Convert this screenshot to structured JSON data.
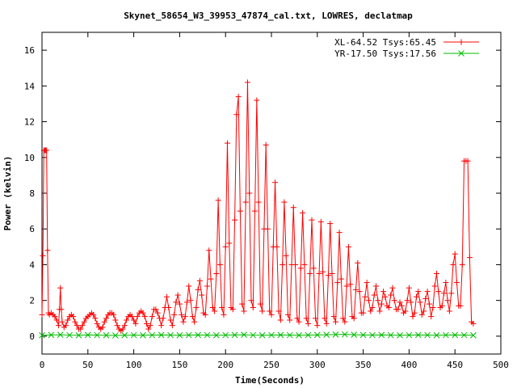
{
  "chart_data": {
    "type": "line",
    "title": "Skynet_58654_W3_39953_47874_cal.txt, LOWRES, declatmap",
    "xlabel": "Time(Seconds)",
    "ylabel": "Power (kelvin)",
    "xlim": [
      0,
      500
    ],
    "ylim": [
      -1,
      17
    ],
    "x_ticks": [
      0,
      50,
      100,
      150,
      200,
      250,
      300,
      350,
      400,
      450,
      500
    ],
    "y_ticks": [
      0,
      2,
      4,
      6,
      8,
      10,
      12,
      14,
      16
    ],
    "grid": false,
    "legend_position": "top-right",
    "series": [
      {
        "name": "XL-64.52 Tsys:65.45",
        "color": "#ff0000",
        "marker": "plus",
        "points": [
          [
            0,
            1.2
          ],
          [
            1,
            4.5
          ],
          [
            2,
            10.4
          ],
          [
            3,
            10.4
          ],
          [
            4,
            10.4
          ],
          [
            5,
            10.4
          ],
          [
            6,
            4.8
          ],
          [
            7,
            1.3
          ],
          [
            8,
            1.2
          ],
          [
            10,
            1.3
          ],
          [
            12,
            1.2
          ],
          [
            14,
            1.1
          ],
          [
            16,
            0.9
          ],
          [
            18,
            0.6
          ],
          [
            19,
            1.5
          ],
          [
            20,
            2.7
          ],
          [
            21,
            1.5
          ],
          [
            22,
            0.8
          ],
          [
            24,
            0.5
          ],
          [
            26,
            0.6
          ],
          [
            28,
            0.9
          ],
          [
            30,
            1.1
          ],
          [
            32,
            1.2
          ],
          [
            34,
            1.1
          ],
          [
            36,
            0.8
          ],
          [
            38,
            0.6
          ],
          [
            40,
            0.4
          ],
          [
            42,
            0.4
          ],
          [
            44,
            0.6
          ],
          [
            46,
            0.8
          ],
          [
            48,
            1.0
          ],
          [
            50,
            1.1
          ],
          [
            52,
            1.2
          ],
          [
            54,
            1.3
          ],
          [
            56,
            1.2
          ],
          [
            58,
            1.0
          ],
          [
            60,
            0.7
          ],
          [
            62,
            0.5
          ],
          [
            64,
            0.4
          ],
          [
            66,
            0.5
          ],
          [
            68,
            0.8
          ],
          [
            70,
            1.0
          ],
          [
            72,
            1.2
          ],
          [
            74,
            1.3
          ],
          [
            76,
            1.3
          ],
          [
            78,
            1.2
          ],
          [
            80,
            0.9
          ],
          [
            82,
            0.6
          ],
          [
            84,
            0.4
          ],
          [
            86,
            0.3
          ],
          [
            88,
            0.4
          ],
          [
            90,
            0.6
          ],
          [
            92,
            0.9
          ],
          [
            94,
            1.1
          ],
          [
            96,
            1.2
          ],
          [
            98,
            1.1
          ],
          [
            100,
            0.9
          ],
          [
            102,
            0.7
          ],
          [
            104,
            1.1
          ],
          [
            106,
            1.3
          ],
          [
            108,
            1.4
          ],
          [
            110,
            1.3
          ],
          [
            112,
            1.1
          ],
          [
            114,
            0.7
          ],
          [
            116,
            0.4
          ],
          [
            118,
            0.6
          ],
          [
            120,
            1.1
          ],
          [
            122,
            1.5
          ],
          [
            124,
            1.5
          ],
          [
            126,
            1.3
          ],
          [
            128,
            1.0
          ],
          [
            130,
            0.6
          ],
          [
            132,
            1.0
          ],
          [
            134,
            1.6
          ],
          [
            136,
            2.2
          ],
          [
            138,
            1.6
          ],
          [
            140,
            0.9
          ],
          [
            142,
            0.6
          ],
          [
            144,
            1.2
          ],
          [
            146,
            1.9
          ],
          [
            148,
            2.3
          ],
          [
            150,
            1.8
          ],
          [
            152,
            1.2
          ],
          [
            154,
            0.8
          ],
          [
            156,
            1.1
          ],
          [
            158,
            1.9
          ],
          [
            160,
            2.8
          ],
          [
            162,
            2.0
          ],
          [
            164,
            1.1
          ],
          [
            166,
            0.8
          ],
          [
            168,
            1.6
          ],
          [
            170,
            2.6
          ],
          [
            172,
            3.1
          ],
          [
            174,
            2.3
          ],
          [
            176,
            1.3
          ],
          [
            178,
            1.2
          ],
          [
            180,
            2.8
          ],
          [
            182,
            4.8
          ],
          [
            184,
            3.2
          ],
          [
            186,
            1.6
          ],
          [
            188,
            1.4
          ],
          [
            190,
            3.5
          ],
          [
            192,
            7.6
          ],
          [
            194,
            4.0
          ],
          [
            196,
            1.6
          ],
          [
            198,
            1.2
          ],
          [
            200,
            5.0
          ],
          [
            202,
            10.8
          ],
          [
            204,
            5.2
          ],
          [
            206,
            1.6
          ],
          [
            208,
            1.5
          ],
          [
            210,
            6.5
          ],
          [
            212,
            12.4
          ],
          [
            214,
            13.4
          ],
          [
            216,
            7.0
          ],
          [
            218,
            1.8
          ],
          [
            220,
            1.4
          ],
          [
            222,
            7.5
          ],
          [
            224,
            14.2
          ],
          [
            226,
            8.0
          ],
          [
            228,
            2.0
          ],
          [
            230,
            1.6
          ],
          [
            232,
            7.0
          ],
          [
            234,
            13.2
          ],
          [
            236,
            7.5
          ],
          [
            238,
            1.8
          ],
          [
            240,
            1.4
          ],
          [
            242,
            6.0
          ],
          [
            244,
            10.7
          ],
          [
            246,
            6.0
          ],
          [
            248,
            1.4
          ],
          [
            250,
            1.2
          ],
          [
            252,
            5.0
          ],
          [
            254,
            8.6
          ],
          [
            256,
            5.0
          ],
          [
            258,
            1.4
          ],
          [
            260,
            0.9
          ],
          [
            262,
            4.0
          ],
          [
            264,
            7.5
          ],
          [
            266,
            4.5
          ],
          [
            268,
            1.2
          ],
          [
            270,
            0.9
          ],
          [
            272,
            4.0
          ],
          [
            274,
            7.2
          ],
          [
            276,
            4.0
          ],
          [
            278,
            1.0
          ],
          [
            280,
            0.8
          ],
          [
            282,
            3.8
          ],
          [
            284,
            6.9
          ],
          [
            286,
            4.0
          ],
          [
            288,
            1.0
          ],
          [
            290,
            0.7
          ],
          [
            292,
            3.5
          ],
          [
            294,
            6.5
          ],
          [
            296,
            3.8
          ],
          [
            298,
            1.0
          ],
          [
            300,
            0.6
          ],
          [
            302,
            3.5
          ],
          [
            304,
            6.4
          ],
          [
            306,
            3.6
          ],
          [
            308,
            1.0
          ],
          [
            310,
            0.7
          ],
          [
            312,
            3.4
          ],
          [
            314,
            6.3
          ],
          [
            316,
            3.5
          ],
          [
            318,
            1.1
          ],
          [
            320,
            0.8
          ],
          [
            322,
            3.0
          ],
          [
            324,
            5.8
          ],
          [
            326,
            3.2
          ],
          [
            328,
            1.0
          ],
          [
            330,
            0.8
          ],
          [
            332,
            2.8
          ],
          [
            334,
            5.0
          ],
          [
            336,
            2.9
          ],
          [
            338,
            1.1
          ],
          [
            340,
            1.0
          ],
          [
            342,
            2.6
          ],
          [
            344,
            4.1
          ],
          [
            346,
            2.5
          ],
          [
            348,
            1.3
          ],
          [
            350,
            1.3
          ],
          [
            352,
            2.2
          ],
          [
            354,
            3.0
          ],
          [
            356,
            2.0
          ],
          [
            358,
            1.4
          ],
          [
            360,
            1.6
          ],
          [
            362,
            2.3
          ],
          [
            364,
            2.8
          ],
          [
            366,
            2.0
          ],
          [
            368,
            1.4
          ],
          [
            370,
            1.8
          ],
          [
            372,
            2.5
          ],
          [
            374,
            2.2
          ],
          [
            376,
            1.7
          ],
          [
            378,
            1.6
          ],
          [
            380,
            2.3
          ],
          [
            382,
            2.7
          ],
          [
            384,
            2.0
          ],
          [
            386,
            1.5
          ],
          [
            388,
            1.5
          ],
          [
            390,
            1.9
          ],
          [
            392,
            1.7
          ],
          [
            394,
            1.3
          ],
          [
            396,
            1.4
          ],
          [
            398,
            2.0
          ],
          [
            400,
            2.7
          ],
          [
            402,
            1.9
          ],
          [
            404,
            1.1
          ],
          [
            406,
            1.3
          ],
          [
            408,
            2.2
          ],
          [
            410,
            2.5
          ],
          [
            412,
            1.9
          ],
          [
            414,
            1.2
          ],
          [
            416,
            1.4
          ],
          [
            418,
            2.1
          ],
          [
            420,
            2.5
          ],
          [
            422,
            1.8
          ],
          [
            424,
            1.1
          ],
          [
            426,
            1.6
          ],
          [
            428,
            2.8
          ],
          [
            430,
            3.5
          ],
          [
            432,
            2.5
          ],
          [
            434,
            1.6
          ],
          [
            436,
            1.7
          ],
          [
            438,
            2.4
          ],
          [
            440,
            3.0
          ],
          [
            442,
            2.0
          ],
          [
            444,
            1.4
          ],
          [
            446,
            2.4
          ],
          [
            448,
            4.0
          ],
          [
            450,
            4.6
          ],
          [
            452,
            3.0
          ],
          [
            454,
            1.7
          ],
          [
            456,
            1.7
          ],
          [
            458,
            4.0
          ],
          [
            460,
            9.8
          ],
          [
            462,
            9.8
          ],
          [
            464,
            9.8
          ],
          [
            466,
            4.4
          ],
          [
            468,
            0.8
          ],
          [
            470,
            0.7
          ]
        ]
      },
      {
        "name": "YR-17.50 Tsys:17.56",
        "color": "#00bb00",
        "marker": "cross",
        "points": [
          [
            0,
            0.05
          ],
          [
            10,
            0.07
          ],
          [
            20,
            0.08
          ],
          [
            30,
            0.06
          ],
          [
            40,
            0.05
          ],
          [
            50,
            0.07
          ],
          [
            60,
            0.06
          ],
          [
            70,
            0.05
          ],
          [
            80,
            0.04
          ],
          [
            90,
            0.05
          ],
          [
            100,
            0.06
          ],
          [
            110,
            0.05
          ],
          [
            120,
            0.06
          ],
          [
            130,
            0.07
          ],
          [
            140,
            0.06
          ],
          [
            150,
            0.05
          ],
          [
            160,
            0.06
          ],
          [
            170,
            0.07
          ],
          [
            180,
            0.06
          ],
          [
            190,
            0.05
          ],
          [
            200,
            0.06
          ],
          [
            210,
            0.07
          ],
          [
            220,
            0.08
          ],
          [
            230,
            0.06
          ],
          [
            240,
            0.05
          ],
          [
            250,
            0.06
          ],
          [
            260,
            0.07
          ],
          [
            270,
            0.06
          ],
          [
            280,
            0.05
          ],
          [
            290,
            0.06
          ],
          [
            300,
            0.07
          ],
          [
            310,
            0.08
          ],
          [
            320,
            0.09
          ],
          [
            330,
            0.1
          ],
          [
            340,
            0.08
          ],
          [
            350,
            0.07
          ],
          [
            360,
            0.06
          ],
          [
            370,
            0.07
          ],
          [
            380,
            0.06
          ],
          [
            390,
            0.05
          ],
          [
            400,
            0.06
          ],
          [
            410,
            0.07
          ],
          [
            420,
            0.06
          ],
          [
            430,
            0.05
          ],
          [
            440,
            0.06
          ],
          [
            450,
            0.07
          ],
          [
            460,
            0.06
          ],
          [
            470,
            0.05
          ]
        ]
      }
    ]
  }
}
